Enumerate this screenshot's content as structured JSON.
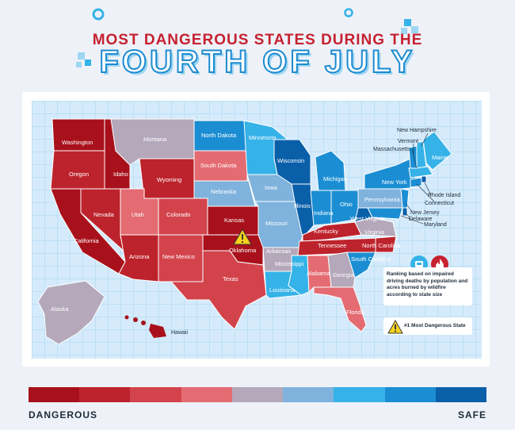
{
  "title": {
    "line1": "MOST DANGEROUS STATES DURING THE",
    "line2": "FOURTH OF JULY"
  },
  "palette": {
    "c1": "#a8111b",
    "c2": "#bd232c",
    "c3": "#d3434c",
    "c4": "#e46b72",
    "c5": "#b4a8ba",
    "c6": "#7fb2dc",
    "c7": "#35b2e8",
    "c8": "#1b8ed3",
    "c9": "#0a5fa9",
    "accent_red": "#c62130",
    "accent_blue": "#1c8bd0"
  },
  "states": {
    "washington": "Washington",
    "oregon": "Oregon",
    "california": "California",
    "idaho": "Idaho",
    "nevada": "Nevada",
    "montana": "Montana",
    "wyoming": "Wyoming",
    "utah": "Utah",
    "colorado": "Colorado",
    "arizona": "Arizona",
    "new_mexico": "New Mexico",
    "north_dakota": "North Dakota",
    "south_dakota": "South Dakota",
    "nebraska": "Nebraska",
    "kansas": "Kansas",
    "oklahoma": "Oklahoma",
    "texas": "Texas",
    "minnesota": "Minnesota",
    "iowa": "Iowa",
    "missouri": "Missouri",
    "arkansas": "Arkansas",
    "louisiana": "Louisiana",
    "wisconsin": "Wisconsin",
    "illinois": "Illinois",
    "michigan": "Michigan",
    "indiana": "Indiana",
    "ohio": "Ohio",
    "kentucky": "Kentucky",
    "tennessee": "Tennessee",
    "mississippi": "Mississippi",
    "alabama": "Alabama",
    "georgia": "Georgia",
    "florida": "Florida",
    "south_carolina": "South Carolina",
    "north_carolina": "North Carolina",
    "virginia": "Virginia",
    "west_virginia": "West Virginia",
    "pennsylvania": "Pennsylvania",
    "new_york": "New York",
    "maine": "Maine",
    "new_hampshire": "New Hampshire",
    "vermont": "Vermont",
    "massachusetts": "Massachusetts",
    "rhode_island": "Rhode Island",
    "connecticut": "Connecticut",
    "new_jersey": "New Jersey",
    "delaware": "Delaware",
    "maryland": "Maryland",
    "alaska": "Alaska",
    "hawaii": "Hawaii"
  },
  "legend": {
    "ranking_text": "Ranking based on impaired driving deaths by population and acres burned by wildfire according to state size",
    "warning_text": "#1 Most Dangerous State",
    "car_icon": "car-crash-icon",
    "fire_icon": "fire-icon",
    "warning_icon": "warning-icon"
  },
  "scale": {
    "left_label": "DANGEROUS",
    "right_label": "SAFE"
  }
}
